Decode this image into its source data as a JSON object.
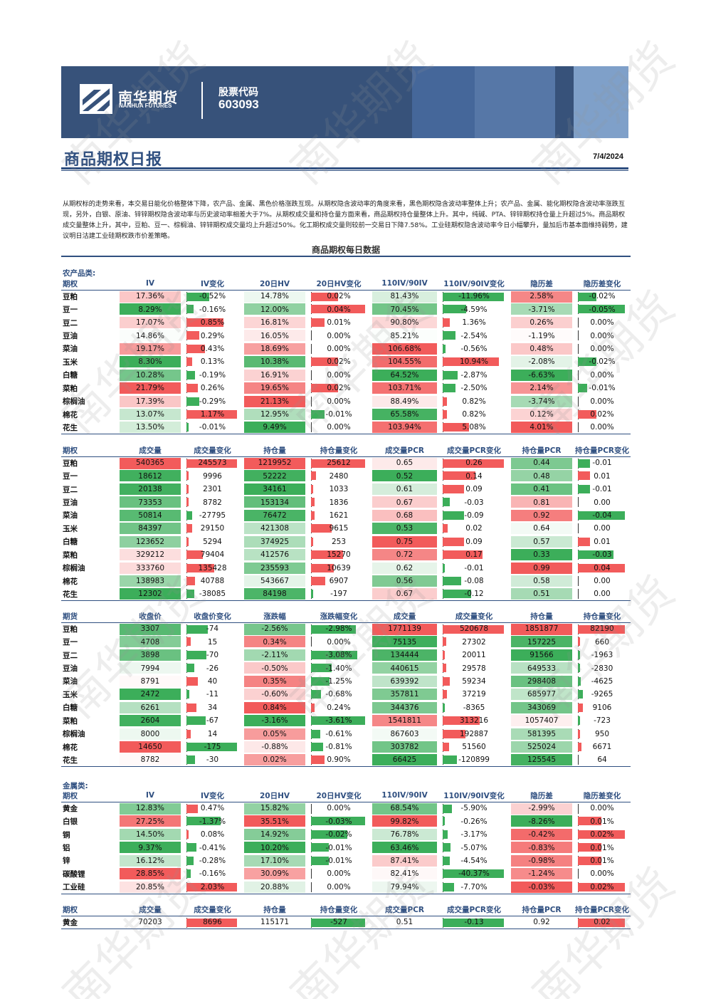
{
  "header": {
    "company_cn": "南华期货",
    "company_en": "NANHUA FUTURES",
    "stock_code_label": "股票代码",
    "stock_code": "603093"
  },
  "title": "商品期权日报",
  "date": "7/4/2024",
  "summary": "从期权标的走势来看，本交易日能化价格整体下降，农产品、金属、黑色价格涨跌互现。从期权隐含波动率的角度来看，黑色期权隐含波动率整体上升；农产品、金属、能化期权隐含波动率涨跌互现，另外，白银、原油、锌锌期权隐含波动率与历史波动率相差大于7%。从期权成交量和持仓量方面来看，商品期权持仓量整体上升。其中，纯碱、PTA、锌锌期权持仓量上升超过5%。商品期权成交量整体上升，其中，豆粕、豆一、棕榈油、锌锌期权成交量均上升超过50%。化工期权成交量则较前一交易日下降7.58%。工业硅期权隐含波动率今日小幅攀升，量加后市基本面维持弱势，建议明日沽建工业硅期权跌市价差策略。",
  "section_title": "商品期权每日数据",
  "colors": {
    "red": "#f25b5b",
    "green": "#3cae5a",
    "accent": "#2f4f80"
  },
  "watermark": "南华期货",
  "agri": {
    "label": "农产品类:",
    "iv_table": {
      "headers": [
        "期权",
        "IV",
        "IV变化",
        "20日HV",
        "20日HV变化",
        "110IV/90IV",
        "110IV/90IV变化",
        "隐历差",
        "隐历差变化"
      ],
      "rows": [
        [
          "豆粕",
          "17.36%",
          "-0.52%",
          "14.78%",
          "0.02%",
          "81.43%",
          "-11.96%",
          "2.58%",
          "-0.02%"
        ],
        [
          "豆一",
          "8.29%",
          "-0.16%",
          "12.00%",
          "0.04%",
          "70.45%",
          "-4.59%",
          "-3.71%",
          "-0.05%"
        ],
        [
          "豆二",
          "17.07%",
          "0.85%",
          "16.81%",
          "0.01%",
          "90.80%",
          "1.36%",
          "0.26%",
          "0.00%"
        ],
        [
          "豆油",
          "14.86%",
          "0.29%",
          "16.05%",
          "0.00%",
          "85.21%",
          "-2.54%",
          "-1.19%",
          "0.00%"
        ],
        [
          "菜油",
          "19.17%",
          "0.43%",
          "18.69%",
          "0.00%",
          "106.68%",
          "-0.56%",
          "0.48%",
          "0.00%"
        ],
        [
          "玉米",
          "8.30%",
          "0.13%",
          "10.38%",
          "0.02%",
          "104.55%",
          "10.94%",
          "-2.08%",
          "-0.02%"
        ],
        [
          "白糖",
          "10.28%",
          "-0.19%",
          "16.91%",
          "0.00%",
          "64.52%",
          "-2.87%",
          "-6.63%",
          "0.00%"
        ],
        [
          "菜粕",
          "21.79%",
          "0.26%",
          "19.65%",
          "0.02%",
          "103.71%",
          "-2.50%",
          "2.14%",
          "-0.01%"
        ],
        [
          "棕榈油",
          "17.39%",
          "-0.29%",
          "21.13%",
          "0.00%",
          "88.49%",
          "0.82%",
          "-3.74%",
          "0.00%"
        ],
        [
          "棉花",
          "13.07%",
          "1.17%",
          "12.95%",
          "-0.01%",
          "65.58%",
          "0.82%",
          "0.12%",
          "0.02%"
        ],
        [
          "花生",
          "13.50%",
          "-0.01%",
          "9.49%",
          "0.00%",
          "103.94%",
          "5.08%",
          "4.01%",
          "0.00%"
        ]
      ]
    },
    "vol_table": {
      "headers": [
        "期权",
        "成交量",
        "成交量变化",
        "持仓量",
        "持仓量变化",
        "成交量PCR",
        "成交量PCR变化",
        "持仓量PCR",
        "持仓量PCR变化"
      ],
      "rows": [
        [
          "豆粕",
          "540365",
          "245573",
          "1219952",
          "25612",
          "0.65",
          "0.26",
          "0.44",
          "-0.01"
        ],
        [
          "豆一",
          "18612",
          "9996",
          "52222",
          "2480",
          "0.52",
          "0.14",
          "0.48",
          "0.01"
        ],
        [
          "豆二",
          "20138",
          "2301",
          "34161",
          "1033",
          "0.61",
          "0.09",
          "0.41",
          "-0.01"
        ],
        [
          "豆油",
          "73353",
          "8782",
          "153134",
          "1836",
          "0.67",
          "-0.03",
          "0.81",
          "0.00"
        ],
        [
          "菜油",
          "50814",
          "-27795",
          "76472",
          "1621",
          "0.68",
          "-0.09",
          "0.92",
          "-0.04"
        ],
        [
          "玉米",
          "84397",
          "29150",
          "421308",
          "9615",
          "0.53",
          "0.02",
          "0.64",
          "0.00"
        ],
        [
          "白糖",
          "123652",
          "5294",
          "374925",
          "253",
          "0.75",
          "0.09",
          "0.57",
          "0.01"
        ],
        [
          "菜粕",
          "329212",
          "79404",
          "412576",
          "15270",
          "0.72",
          "0.17",
          "0.33",
          "-0.03"
        ],
        [
          "棕榈油",
          "333760",
          "135428",
          "235593",
          "10639",
          "0.62",
          "-0.01",
          "0.99",
          "0.04"
        ],
        [
          "棉花",
          "138983",
          "40788",
          "543667",
          "6907",
          "0.56",
          "-0.08",
          "0.58",
          "0.00"
        ],
        [
          "花生",
          "12302",
          "-38085",
          "84198",
          "-197",
          "0.67",
          "-0.12",
          "0.51",
          "0.00"
        ]
      ]
    },
    "fut_table": {
      "headers": [
        "期货",
        "收盘价",
        "收盘价变化",
        "涨跌幅",
        "涨跌幅变化",
        "成交量",
        "成交量变化",
        "持仓量",
        "持仓量变化"
      ],
      "rows": [
        [
          "豆粕",
          "3307",
          "-74",
          "-2.56%",
          "-2.98%",
          "1771139",
          "520678",
          "1851877",
          "82190"
        ],
        [
          "豆一",
          "4708",
          "15",
          "0.34%",
          "0.00%",
          "75135",
          "27302",
          "157225",
          "660"
        ],
        [
          "豆二",
          "3898",
          "-70",
          "-2.11%",
          "-3.08%",
          "134444",
          "20011",
          "91566",
          "-1963"
        ],
        [
          "豆油",
          "7994",
          "-26",
          "-0.50%",
          "-1.40%",
          "440615",
          "29578",
          "649533",
          "-2830"
        ],
        [
          "菜油",
          "8791",
          "40",
          "0.35%",
          "-1.25%",
          "639392",
          "59234",
          "298408",
          "-4625"
        ],
        [
          "玉米",
          "2472",
          "-11",
          "-0.60%",
          "-0.68%",
          "357811",
          "37219",
          "685977",
          "-9265"
        ],
        [
          "白糖",
          "6261",
          "34",
          "0.84%",
          "0.24%",
          "344376",
          "-8365",
          "343069",
          "9106"
        ],
        [
          "菜粕",
          "2604",
          "-67",
          "-3.16%",
          "-3.61%",
          "1541811",
          "313216",
          "1057407",
          "-723"
        ],
        [
          "棕榈油",
          "8000",
          "14",
          "0.05%",
          "-0.61%",
          "867603",
          "192887",
          "581395",
          "950"
        ],
        [
          "棉花",
          "14650",
          "-175",
          "-0.88%",
          "-0.81%",
          "303782",
          "51560",
          "525024",
          "6671"
        ],
        [
          "花生",
          "8782",
          "-30",
          "0.02%",
          "0.90%",
          "66425",
          "-120899",
          "125545",
          "64"
        ]
      ]
    }
  },
  "metal": {
    "label": "金属类:",
    "iv_table": {
      "headers": [
        "期权",
        "IV",
        "IV变化",
        "20日HV",
        "20日HV变化",
        "110IV/90IV",
        "110IV/90IV变化",
        "隐历差",
        "隐历差变化"
      ],
      "rows": [
        [
          "黄金",
          "12.83%",
          "0.47%",
          "15.82%",
          "0.00%",
          "68.54%",
          "-5.90%",
          "-2.99%",
          "0.00%"
        ],
        [
          "白银",
          "27.25%",
          "-1.37%",
          "35.51%",
          "-0.03%",
          "99.82%",
          "-0.26%",
          "-8.26%",
          "0.01%"
        ],
        [
          "铜",
          "14.50%",
          "0.08%",
          "14.92%",
          "-0.02%",
          "76.78%",
          "-3.17%",
          "-0.42%",
          "0.02%"
        ],
        [
          "铝",
          "9.37%",
          "-0.41%",
          "10.20%",
          "-0.01%",
          "63.46%",
          "-5.07%",
          "-0.83%",
          "0.01%"
        ],
        [
          "锌",
          "16.12%",
          "-0.28%",
          "17.10%",
          "-0.01%",
          "87.41%",
          "-4.54%",
          "-0.98%",
          "0.01%"
        ],
        [
          "碳酸锂",
          "28.85%",
          "-0.16%",
          "30.09%",
          "0.00%",
          "82.41%",
          "-40.37%",
          "-1.24%",
          "0.00%"
        ],
        [
          "工业硅",
          "20.85%",
          "2.03%",
          "20.88%",
          "0.00%",
          "79.94%",
          "-7.70%",
          "-0.03%",
          "0.02%"
        ]
      ]
    },
    "vol_table": {
      "headers": [
        "期权",
        "成交量",
        "成交量变化",
        "持仓量",
        "持仓量变化",
        "成交量PCR",
        "成交量PCR变化",
        "持仓量PCR",
        "持仓量PCR变化"
      ],
      "rows": [
        [
          "黄金",
          "70203",
          "8696",
          "115171",
          "-527",
          "0.51",
          "-0.13",
          "0.92",
          "0.02"
        ]
      ]
    }
  }
}
